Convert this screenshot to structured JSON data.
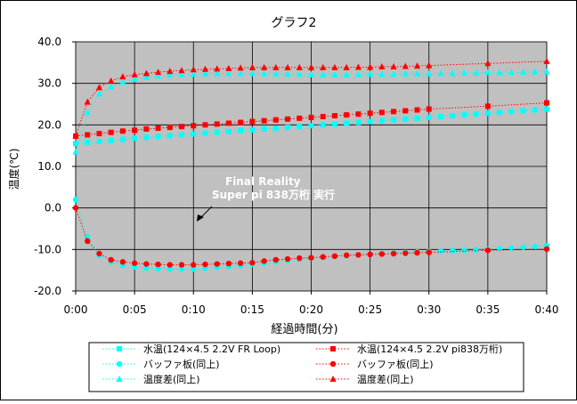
{
  "chart_data": {
    "type": "line",
    "title": "グラフ2",
    "xlabel": "経過時間(分)",
    "ylabel": "温度(℃)",
    "ylim": [
      -20,
      40
    ],
    "yticks": [
      "40.0",
      "30.0",
      "20.0",
      "10.0",
      "0.0",
      "-10.0",
      "-20.0"
    ],
    "xlim": [
      "0:00",
      "0:40"
    ],
    "xticks": [
      "0:00",
      "0:05",
      "0:10",
      "0:15",
      "0:20",
      "0:25",
      "0:30",
      "0:35",
      "0:40"
    ],
    "grid": true,
    "plot_background": "#c0c0c0",
    "annotation": [
      "Final  Reality",
      "Super pi 838万桁  実行"
    ],
    "legend_position": "bottom",
    "series": [
      {
        "name": "水温(124×4.5  2.2V FR Loop)",
        "color": "#00ffff",
        "marker": "square",
        "x": [
          0,
          1,
          2,
          3,
          4,
          5,
          6,
          7,
          8,
          9,
          10,
          11,
          12,
          13,
          14,
          15,
          16,
          17,
          18,
          19,
          20,
          21,
          22,
          23,
          24,
          25,
          26,
          27,
          28,
          29,
          30,
          31,
          32,
          33,
          34,
          35,
          36,
          37,
          38,
          39,
          40
        ],
        "y": [
          15.5,
          15.8,
          16.0,
          16.2,
          16.5,
          16.8,
          17.0,
          17.2,
          17.4,
          17.6,
          17.8,
          18.0,
          18.2,
          18.4,
          18.6,
          18.8,
          19.0,
          19.2,
          19.4,
          19.6,
          19.8,
          20.0,
          20.2,
          20.4,
          20.6,
          20.8,
          21.0,
          21.2,
          21.4,
          21.6,
          21.8,
          22.0,
          22.2,
          22.4,
          22.6,
          22.8,
          23.0,
          23.2,
          23.4,
          23.6,
          23.8
        ]
      },
      {
        "name": "水温(124×4.5  2.2V pi838万桁)",
        "color": "#ff0000",
        "marker": "square",
        "x": [
          0,
          1,
          2,
          3,
          4,
          5,
          6,
          7,
          8,
          9,
          10,
          11,
          12,
          13,
          14,
          15,
          16,
          17,
          18,
          19,
          20,
          21,
          22,
          23,
          24,
          25,
          26,
          27,
          28,
          29,
          30,
          35,
          40
        ],
        "y": [
          17.3,
          17.6,
          17.9,
          18.2,
          18.5,
          18.7,
          19.0,
          19.2,
          19.4,
          19.6,
          19.8,
          20.0,
          20.2,
          20.4,
          20.6,
          20.8,
          21.0,
          21.2,
          21.4,
          21.6,
          21.8,
          22.0,
          22.2,
          22.4,
          22.6,
          22.8,
          23.0,
          23.2,
          23.4,
          23.6,
          23.8,
          24.5,
          25.3
        ]
      },
      {
        "name": "バッファ板(同上)",
        "color": "#00ffff",
        "marker": "circle",
        "x": [
          0,
          1,
          2,
          3,
          4,
          5,
          6,
          7,
          8,
          9,
          10,
          11,
          12,
          13,
          14,
          15,
          16,
          17,
          18,
          19,
          20,
          21,
          22,
          23,
          24,
          25,
          26,
          27,
          28,
          29,
          30,
          31,
          32,
          33,
          34,
          35,
          36,
          37,
          38,
          39,
          40
        ],
        "y": [
          2.0,
          -7.0,
          -11.5,
          -13.0,
          -13.8,
          -14.2,
          -14.5,
          -14.6,
          -14.7,
          -14.7,
          -14.7,
          -14.5,
          -14.3,
          -14.1,
          -13.9,
          -13.6,
          -13.3,
          -13.0,
          -12.7,
          -12.4,
          -12.1,
          -11.9,
          -11.7,
          -11.5,
          -11.3,
          -11.2,
          -11.0,
          -10.9,
          -10.7,
          -10.6,
          -10.5,
          -10.4,
          -10.3,
          -10.2,
          -10.1,
          -10.0,
          -9.8,
          -9.7,
          -9.5,
          -9.3,
          -9.1
        ]
      },
      {
        "name": "バッファ板(同上)",
        "color": "#ff0000",
        "marker": "circle",
        "x": [
          0,
          1,
          2,
          3,
          4,
          5,
          6,
          7,
          8,
          9,
          10,
          11,
          12,
          13,
          14,
          15,
          16,
          17,
          18,
          19,
          20,
          21,
          22,
          23,
          24,
          25,
          26,
          27,
          28,
          29,
          30,
          35,
          40
        ],
        "y": [
          0.0,
          -8.0,
          -11.0,
          -12.5,
          -13.0,
          -13.3,
          -13.5,
          -13.6,
          -13.7,
          -13.7,
          -13.7,
          -13.6,
          -13.5,
          -13.4,
          -13.3,
          -13.2,
          -12.8,
          -12.5,
          -12.3,
          -12.1,
          -12.0,
          -11.8,
          -11.6,
          -11.4,
          -11.3,
          -11.2,
          -11.1,
          -11.0,
          -10.9,
          -10.8,
          -10.7,
          -10.2,
          -9.9
        ]
      },
      {
        "name": "温度差(同上)",
        "color": "#00ffff",
        "marker": "triangle",
        "x": [
          0,
          1,
          2,
          3,
          4,
          5,
          6,
          7,
          8,
          9,
          10,
          11,
          12,
          13,
          14,
          15,
          16,
          17,
          18,
          19,
          20,
          21,
          22,
          23,
          24,
          25,
          26,
          27,
          28,
          29,
          30,
          31,
          32,
          33,
          34,
          35,
          36,
          37,
          38,
          39,
          40
        ],
        "y": [
          13.5,
          23.0,
          27.5,
          29.2,
          30.3,
          31.0,
          31.5,
          31.8,
          32.0,
          32.1,
          32.2,
          32.3,
          32.4,
          32.4,
          32.4,
          32.4,
          32.3,
          32.3,
          32.2,
          32.2,
          32.1,
          32.1,
          32.1,
          32.1,
          32.1,
          32.2,
          32.2,
          32.2,
          32.3,
          32.3,
          32.3,
          32.4,
          32.4,
          32.5,
          32.5,
          32.6,
          32.6,
          32.7,
          32.7,
          32.8,
          32.8
        ]
      },
      {
        "name": "温度差(同上)",
        "color": "#ff0000",
        "marker": "triangle",
        "x": [
          0,
          1,
          2,
          3,
          4,
          5,
          6,
          7,
          8,
          9,
          10,
          11,
          12,
          13,
          14,
          15,
          16,
          17,
          18,
          19,
          20,
          21,
          22,
          23,
          24,
          25,
          26,
          27,
          28,
          29,
          30,
          35,
          40
        ],
        "y": [
          17.3,
          25.5,
          29.0,
          30.6,
          31.6,
          32.1,
          32.4,
          32.7,
          32.9,
          33.1,
          33.3,
          33.4,
          33.5,
          33.6,
          33.7,
          33.8,
          33.8,
          33.8,
          33.8,
          33.8,
          33.8,
          33.8,
          33.8,
          33.8,
          33.9,
          33.9,
          34.0,
          34.0,
          34.1,
          34.2,
          34.3,
          34.8,
          35.3
        ]
      }
    ]
  }
}
